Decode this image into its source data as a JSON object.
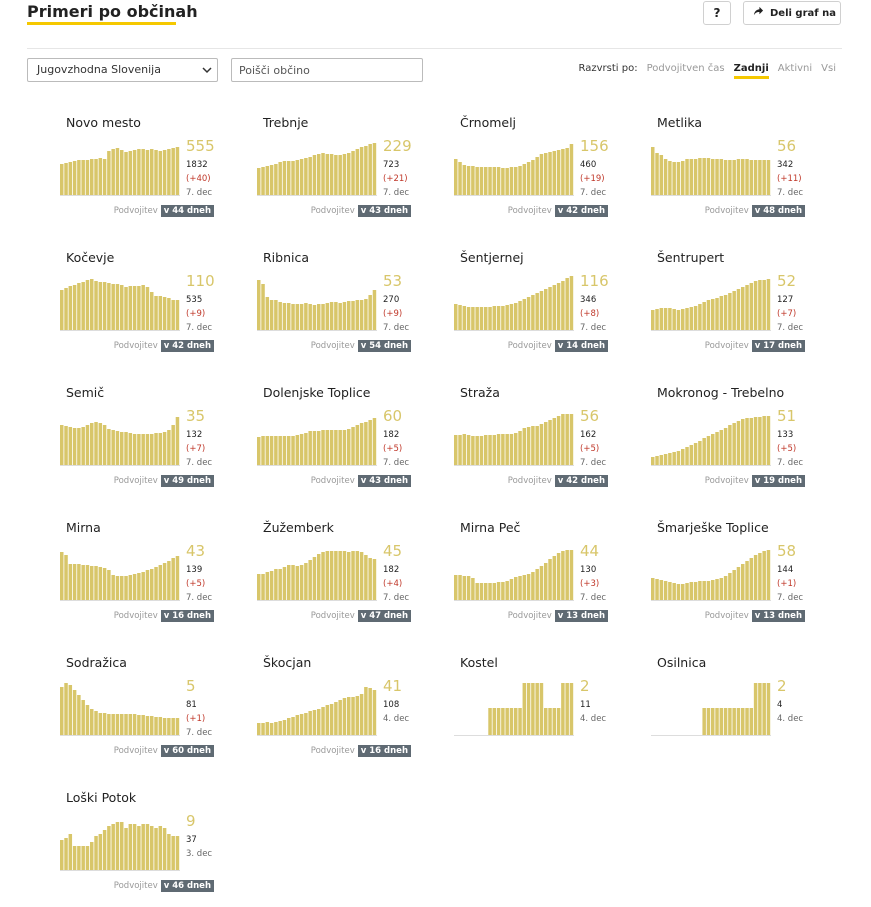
{
  "header": {
    "title": "Primeri po občinah",
    "help_label": "?",
    "share_label": "Deli graf na"
  },
  "filters": {
    "region": "Jugovzhodna Slovenija",
    "search_placeholder": "Poišči občino"
  },
  "sort": {
    "label": "Razvrsti po:",
    "options": [
      "Podvojitven čas",
      "Zadnji",
      "Aktivni",
      "Vsi"
    ],
    "active_index": 1
  },
  "colors": {
    "bar": "#d8c66a",
    "bar_highlight": "#d4c35e",
    "accent": "#f5c800",
    "delta": "#c0392b",
    "badge": "#5f6a73"
  },
  "doubling_label": "Podvojitev",
  "cards": [
    {
      "name": "Novo mesto",
      "value": "555",
      "total": "1832",
      "delta": "(+40)",
      "date": "7. dec",
      "doubling": "v 44 dneh",
      "series": [
        31,
        32,
        33,
        34,
        35,
        35,
        35,
        36,
        36,
        37,
        36,
        44,
        46,
        47,
        45,
        43,
        44,
        45,
        46,
        46,
        45,
        46,
        45,
        44,
        45,
        46,
        47,
        48
      ]
    },
    {
      "name": "Trebnje",
      "value": "229",
      "total": "723",
      "delta": "(+21)",
      "date": "7. dec",
      "doubling": "v 43 dneh",
      "series": [
        27,
        28,
        29,
        30,
        31,
        33,
        34,
        34,
        34,
        35,
        36,
        37,
        38,
        40,
        41,
        42,
        41,
        41,
        40,
        40,
        41,
        42,
        44,
        46,
        48,
        49,
        51,
        52
      ]
    },
    {
      "name": "Črnomelj",
      "value": "156",
      "total": "460",
      "delta": "(+19)",
      "date": "7. dec",
      "doubling": "v 42 dneh",
      "series": [
        36,
        33,
        30,
        29,
        29,
        28,
        28,
        28,
        28,
        28,
        28,
        27,
        27,
        28,
        28,
        29,
        31,
        33,
        35,
        38,
        41,
        42,
        43,
        44,
        45,
        46,
        47,
        51
      ]
    },
    {
      "name": "Metlika",
      "value": "56",
      "total": "342",
      "delta": "(+11)",
      "date": "7. dec",
      "doubling": "v 48 dneh",
      "series": [
        48,
        42,
        40,
        36,
        34,
        33,
        33,
        34,
        36,
        36,
        36,
        37,
        37,
        37,
        36,
        36,
        36,
        35,
        35,
        35,
        36,
        36,
        36,
        35,
        35,
        35,
        35,
        35
      ]
    },
    {
      "name": "Kočevje",
      "value": "110",
      "total": "535",
      "delta": "(+9)",
      "date": "7. dec",
      "doubling": "v 42 dneh",
      "series": [
        40,
        42,
        44,
        45,
        47,
        48,
        50,
        51,
        49,
        48,
        48,
        47,
        46,
        46,
        45,
        43,
        44,
        44,
        44,
        45,
        43,
        38,
        34,
        34,
        33,
        32,
        30,
        30
      ]
    },
    {
      "name": "Ribnica",
      "value": "53",
      "total": "270",
      "delta": "(+9)",
      "date": "7. dec",
      "doubling": "v 54 dneh",
      "series": [
        50,
        46,
        33,
        30,
        30,
        28,
        27,
        27,
        26,
        26,
        26,
        27,
        26,
        25,
        26,
        26,
        27,
        28,
        28,
        27,
        28,
        29,
        29,
        30,
        30,
        31,
        35,
        40
      ]
    },
    {
      "name": "Šentjernej",
      "value": "116",
      "total": "346",
      "delta": "(+8)",
      "date": "7. dec",
      "doubling": "v 14 dneh",
      "series": [
        26,
        25,
        24,
        23,
        23,
        23,
        23,
        23,
        23,
        24,
        24,
        24,
        25,
        26,
        27,
        29,
        31,
        33,
        35,
        37,
        39,
        41,
        43,
        45,
        47,
        49,
        52,
        54
      ]
    },
    {
      "name": "Šentrupert",
      "value": "52",
      "total": "127",
      "delta": "(+7)",
      "date": "7. dec",
      "doubling": "v 17 dneh",
      "series": [
        20,
        21,
        22,
        22,
        22,
        21,
        20,
        21,
        22,
        23,
        24,
        26,
        28,
        30,
        31,
        32,
        34,
        35,
        37,
        39,
        41,
        43,
        45,
        47,
        49,
        50,
        50,
        51
      ]
    },
    {
      "name": "Semič",
      "value": "35",
      "total": "132",
      "delta": "(+7)",
      "date": "7. dec",
      "doubling": "v 49 dneh",
      "series": [
        40,
        39,
        38,
        37,
        37,
        38,
        40,
        42,
        43,
        42,
        40,
        36,
        35,
        34,
        33,
        33,
        32,
        31,
        31,
        31,
        31,
        31,
        32,
        32,
        33,
        35,
        40,
        48
      ]
    },
    {
      "name": "Dolenjske Toplice",
      "value": "60",
      "total": "182",
      "delta": "(+5)",
      "date": "7. dec",
      "doubling": "v 43 dneh",
      "series": [
        28,
        29,
        29,
        29,
        29,
        29,
        29,
        29,
        29,
        30,
        31,
        32,
        34,
        34,
        34,
        35,
        35,
        35,
        35,
        35,
        35,
        36,
        38,
        40,
        42,
        43,
        45,
        47
      ]
    },
    {
      "name": "Straža",
      "value": "56",
      "total": "162",
      "delta": "(+5)",
      "date": "7. dec",
      "doubling": "v 42 dneh",
      "series": [
        30,
        30,
        31,
        30,
        29,
        29,
        29,
        30,
        30,
        30,
        31,
        31,
        31,
        31,
        32,
        34,
        37,
        38,
        39,
        39,
        41,
        43,
        45,
        47,
        49,
        51,
        51,
        51
      ]
    },
    {
      "name": "Mokronog - Trebelno",
      "value": "51",
      "total": "133",
      "delta": "(+5)",
      "date": "7. dec",
      "doubling": "v 19 dneh",
      "series": [
        8,
        9,
        10,
        11,
        12,
        13,
        14,
        16,
        18,
        20,
        22,
        24,
        27,
        29,
        31,
        33,
        35,
        37,
        40,
        42,
        44,
        46,
        47,
        47,
        48,
        48,
        49,
        49
      ]
    },
    {
      "name": "Mirna",
      "value": "43",
      "total": "139",
      "delta": "(+5)",
      "date": "7. dec",
      "doubling": "v 16 dneh",
      "series": [
        48,
        45,
        36,
        36,
        36,
        35,
        35,
        34,
        34,
        33,
        32,
        30,
        25,
        24,
        24,
        24,
        25,
        26,
        27,
        28,
        30,
        31,
        33,
        35,
        37,
        39,
        42,
        44
      ]
    },
    {
      "name": "Žužemberk",
      "value": "45",
      "total": "182",
      "delta": "(+4)",
      "date": "7. dec",
      "doubling": "v 47 dneh",
      "series": [
        26,
        26,
        28,
        29,
        31,
        31,
        33,
        35,
        35,
        34,
        35,
        37,
        40,
        43,
        46,
        48,
        49,
        49,
        49,
        49,
        49,
        48,
        49,
        49,
        48,
        45,
        42,
        41
      ]
    },
    {
      "name": "Mirna Peč",
      "value": "44",
      "total": "130",
      "delta": "(+3)",
      "date": "7. dec",
      "doubling": "v 13 dneh",
      "series": [
        25,
        25,
        24,
        24,
        22,
        17,
        17,
        17,
        17,
        17,
        18,
        18,
        19,
        21,
        23,
        24,
        25,
        26,
        28,
        31,
        34,
        37,
        41,
        44,
        47,
        49,
        50,
        50
      ]
    },
    {
      "name": "Šmarješke Toplice",
      "value": "58",
      "total": "144",
      "delta": "(+1)",
      "date": "7. dec",
      "doubling": "v 13 dneh",
      "series": [
        22,
        21,
        20,
        19,
        18,
        17,
        16,
        16,
        17,
        18,
        18,
        19,
        19,
        19,
        20,
        21,
        22,
        24,
        27,
        30,
        33,
        36,
        39,
        42,
        45,
        47,
        49,
        50
      ]
    },
    {
      "name": "Sodražica",
      "value": "5",
      "total": "81",
      "delta": "(+1)",
      "date": "7. dec",
      "doubling": "v 60 dneh",
      "series": [
        48,
        52,
        50,
        45,
        40,
        35,
        30,
        26,
        24,
        22,
        22,
        21,
        21,
        21,
        21,
        21,
        21,
        21,
        20,
        20,
        19,
        19,
        18,
        18,
        17,
        17,
        17,
        17
      ]
    },
    {
      "name": "Škocjan",
      "value": "41",
      "total": "108",
      "delta": "",
      "date": "4. dec",
      "doubling": "v 16 dneh",
      "series": [
        12,
        12,
        13,
        12,
        13,
        14,
        15,
        17,
        18,
        20,
        21,
        22,
        24,
        25,
        26,
        28,
        30,
        31,
        33,
        35,
        37,
        38,
        38,
        39,
        41,
        48,
        47,
        45
      ]
    },
    {
      "name": "Kostel",
      "value": "2",
      "total": "11",
      "delta": "",
      "date": "4. dec",
      "doubling": "",
      "series": [
        0,
        0,
        0,
        0,
        0,
        0,
        0,
        0,
        27,
        27,
        27,
        27,
        27,
        27,
        27,
        27,
        52,
        52,
        52,
        52,
        52,
        27,
        27,
        27,
        27,
        52,
        52,
        52
      ]
    },
    {
      "name": "Osilnica",
      "value": "2",
      "total": "4",
      "delta": "",
      "date": "4. dec",
      "doubling": "",
      "series": [
        0,
        0,
        0,
        0,
        0,
        0,
        0,
        0,
        0,
        0,
        0,
        0,
        27,
        27,
        27,
        27,
        27,
        27,
        27,
        27,
        27,
        27,
        27,
        27,
        52,
        52,
        52,
        52
      ]
    },
    {
      "name": "Loški Potok",
      "value": "9",
      "total": "37",
      "delta": "",
      "date": "3. dec",
      "doubling": "v 46 dneh",
      "series": [
        30,
        32,
        36,
        24,
        24,
        24,
        24,
        28,
        34,
        36,
        40,
        44,
        46,
        48,
        48,
        42,
        46,
        46,
        44,
        46,
        46,
        44,
        42,
        44,
        42,
        36,
        34,
        34
      ]
    }
  ]
}
